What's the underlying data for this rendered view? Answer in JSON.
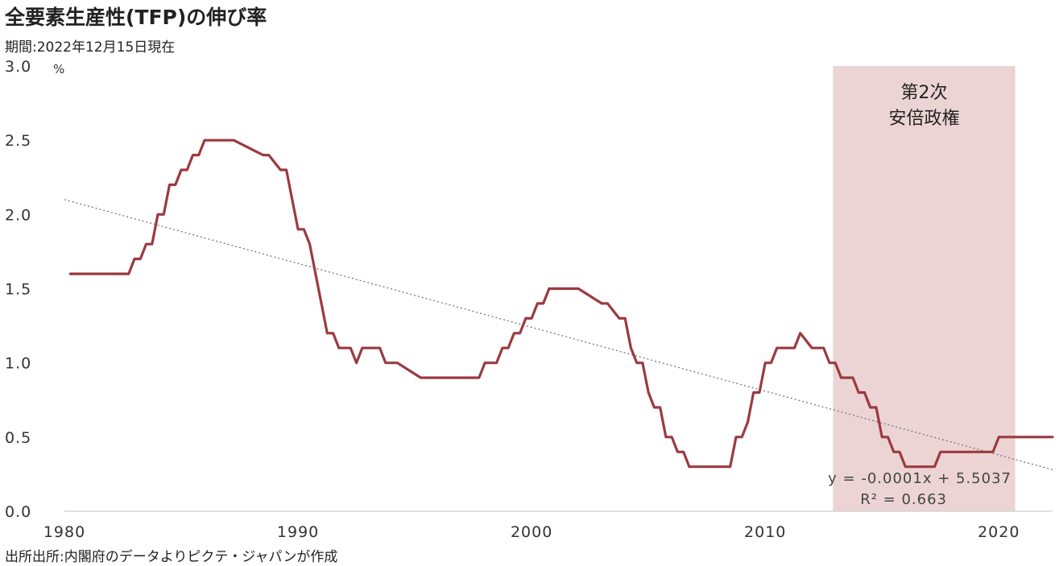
{
  "header": {
    "title": "全要素生産性(TFP)の伸び率",
    "subtitle": "期間:2022年12月15日現在"
  },
  "footer": {
    "source": "出所出所:内閣府のデータよりピクテ・ジャパンが作成"
  },
  "colors": {
    "series": "#9b3a40",
    "shade": "#ecd4d5",
    "trendline": "#777777",
    "axis": "#cfcfcf"
  },
  "chart_data": {
    "type": "line",
    "title": "全要素生産性(TFP)の伸び率",
    "xlabel": "",
    "ylabel": "",
    "y_unit": "%",
    "xlim": [
      1980,
      2022.3
    ],
    "ylim": [
      0,
      3.0
    ],
    "x_ticks": [
      "1980",
      "1990",
      "2000",
      "2010",
      "2020"
    ],
    "y_ticks": [
      "0.0",
      "0.5",
      "1.0",
      "1.5",
      "2.0",
      "2.5",
      "3.0"
    ],
    "grid": false,
    "shaded_region": {
      "x_start": 2012.9,
      "x_end": 2020.7,
      "label_lines": [
        "第2次",
        "安倍政権"
      ]
    },
    "trendline": {
      "x": [
        1980,
        2022.3
      ],
      "y": [
        2.1,
        0.28
      ],
      "equation": "y = -0.0001x + 5.5037",
      "r_squared": "R² = 0.663"
    },
    "series": [
      {
        "x": [
          1980.25,
          1982.75,
          1983.0,
          1983.25,
          1983.5,
          1983.75,
          1984.0,
          1984.25,
          1984.5,
          1984.75,
          1985.0,
          1985.25,
          1985.5,
          1985.75,
          1986.0,
          1986.25,
          1986.5,
          1986.75,
          1987.0,
          1987.25,
          1988.5,
          1988.75,
          1989.25,
          1989.5,
          1989.75,
          1990.0,
          1990.25,
          1990.5,
          1990.75,
          1991.0,
          1991.25,
          1991.5,
          1991.75,
          1992.0,
          1992.25,
          1992.5,
          1992.75,
          1993.0,
          1993.25,
          1993.5,
          1993.75,
          1994.0,
          1994.25,
          1995.25,
          1995.5,
          1996.25,
          1996.5,
          1997.75,
          1998.0,
          1998.5,
          1998.75,
          1999.0,
          1999.25,
          1999.5,
          1999.75,
          2000.0,
          2000.25,
          2000.5,
          2000.75,
          2001.0,
          2001.25,
          2001.5,
          2001.75,
          2002.0,
          2003.0,
          2003.25,
          2003.75,
          2004.0,
          2004.25,
          2004.5,
          2004.75,
          2005.0,
          2005.25,
          2005.5,
          2005.75,
          2006.0,
          2006.25,
          2006.5,
          2006.75,
          2007.0,
          2007.25,
          2007.5,
          2008.5,
          2008.75,
          2009.0,
          2009.25,
          2009.5,
          2009.75,
          2010.0,
          2010.25,
          2010.5,
          2010.75,
          2011.0,
          2011.25,
          2011.5,
          2012.0,
          2012.25,
          2012.5,
          2012.75,
          2013.0,
          2013.25,
          2013.75,
          2014.0,
          2014.25,
          2014.5,
          2014.75,
          2015.0,
          2015.25,
          2015.5,
          2015.75,
          2016.0,
          2016.25,
          2016.5,
          2016.75,
          2017.0,
          2017.25,
          2017.5,
          2017.75,
          2019.75,
          2020.0,
          2020.75,
          2021.0,
          2021.25,
          2022.3
        ],
        "y": [
          1.6,
          1.6,
          1.7,
          1.7,
          1.8,
          1.8,
          2.0,
          2.0,
          2.2,
          2.2,
          2.3,
          2.3,
          2.4,
          2.4,
          2.5,
          2.5,
          2.5,
          2.5,
          2.5,
          2.5,
          2.4,
          2.4,
          2.3,
          2.3,
          2.1,
          1.9,
          1.9,
          1.8,
          1.6,
          1.4,
          1.2,
          1.2,
          1.1,
          1.1,
          1.1,
          1.0,
          1.1,
          1.1,
          1.1,
          1.1,
          1.0,
          1.0,
          1.0,
          0.9,
          0.9,
          0.9,
          0.9,
          0.9,
          1.0,
          1.0,
          1.1,
          1.1,
          1.2,
          1.2,
          1.3,
          1.3,
          1.4,
          1.4,
          1.5,
          1.5,
          1.5,
          1.5,
          1.5,
          1.5,
          1.4,
          1.4,
          1.3,
          1.3,
          1.1,
          1.0,
          1.0,
          0.8,
          0.7,
          0.7,
          0.5,
          0.5,
          0.4,
          0.4,
          0.3,
          0.3,
          0.3,
          0.3,
          0.3,
          0.5,
          0.5,
          0.6,
          0.8,
          0.8,
          1.0,
          1.0,
          1.1,
          1.1,
          1.1,
          1.1,
          1.2,
          1.1,
          1.1,
          1.1,
          1.0,
          1.0,
          0.9,
          0.9,
          0.8,
          0.8,
          0.7,
          0.7,
          0.5,
          0.5,
          0.4,
          0.4,
          0.3,
          0.3,
          0.3,
          0.3,
          0.3,
          0.3,
          0.4,
          0.4,
          0.4,
          0.5,
          0.5,
          0.5,
          0.5,
          0.5
        ]
      }
    ]
  }
}
